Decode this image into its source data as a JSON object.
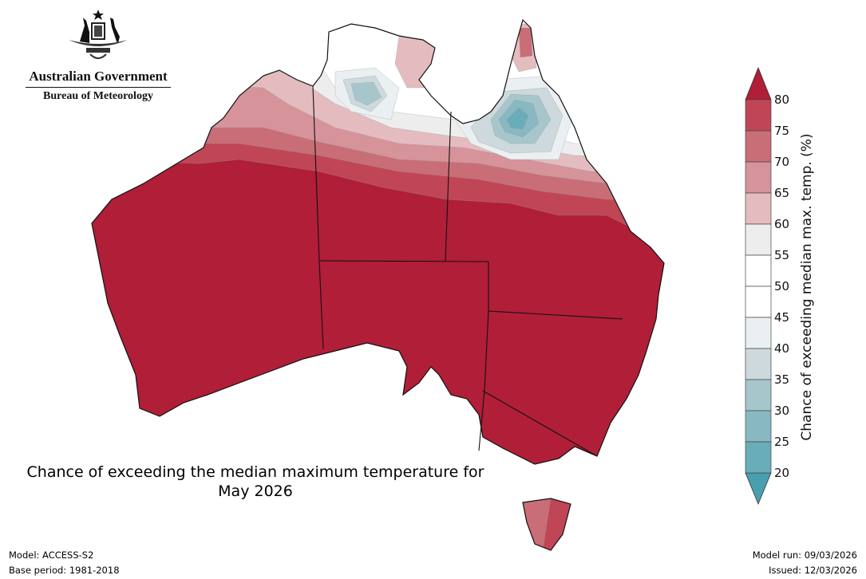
{
  "logo": {
    "line1": "Australian Government",
    "line2": "Bureau of Meteorology"
  },
  "title": {
    "line1": "Chance of exceeding the median maximum temperature for",
    "line2": "May 2026"
  },
  "footer": {
    "model": "Model: ACCESS-S2",
    "base_period": "Base period: 1981-2018",
    "model_run": "Model run: 09/03/2026",
    "issued": "Issued: 12/03/2026"
  },
  "colorbar": {
    "label": "Chance of exceeding median max. temp. (%)",
    "ticks": [
      "80",
      "75",
      "70",
      "65",
      "60",
      "55",
      "50",
      "45",
      "40",
      "35",
      "30",
      "25",
      "20"
    ],
    "over_color": "#b01e38",
    "under_color": "#4a9fae",
    "bins": [
      {
        "range": "75-80",
        "color": "#c04656"
      },
      {
        "range": "70-75",
        "color": "#c96d76"
      },
      {
        "range": "65-70",
        "color": "#d6939a"
      },
      {
        "range": "60-65",
        "color": "#e4bcc0"
      },
      {
        "range": "55-60",
        "color": "#ededee"
      },
      {
        "range": "50-55",
        "color": "#ffffff"
      },
      {
        "range": "45-50",
        "color": "#ffffff"
      },
      {
        "range": "40-45",
        "color": "#eaf0f2"
      },
      {
        "range": "35-40",
        "color": "#cdd9dc"
      },
      {
        "range": "30-35",
        "color": "#a7c6cc"
      },
      {
        "range": "25-30",
        "color": "#88b8c2"
      },
      {
        "range": "20-25",
        "color": "#69adb9"
      }
    ]
  }
}
